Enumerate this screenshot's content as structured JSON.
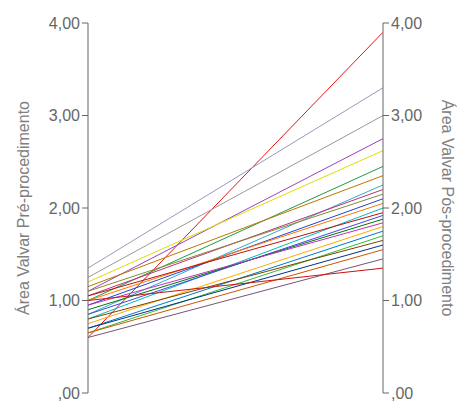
{
  "chart_data": {
    "type": "line",
    "y_label": "Área Valvar Pré-procedimento",
    "y2_label": "Área Valvar Pós-procedimento",
    "x": [
      0,
      1
    ],
    "xlim": [
      0,
      1
    ],
    "ylim": [
      0.0,
      4.0
    ],
    "yticks": [
      {
        "value": 0.0,
        "label": ",00"
      },
      {
        "value": 1.0,
        "label": "1,00"
      },
      {
        "value": 2.0,
        "label": "2,00"
      },
      {
        "value": 3.0,
        "label": "3,00"
      },
      {
        "value": 4.0,
        "label": "4,00"
      }
    ],
    "y2lim": [
      0.0,
      4.0
    ],
    "y2ticks": [
      {
        "value": 0.0,
        "label": ",00"
      },
      {
        "value": 1.0,
        "label": "1,00"
      },
      {
        "value": 2.0,
        "label": "2,00"
      },
      {
        "value": 3.0,
        "label": "3,00"
      },
      {
        "value": 4.0,
        "label": "4,00"
      }
    ],
    "grid": false,
    "tick_labels": "y",
    "series": [
      {
        "color": "#ee1111",
        "values": [
          0.6,
          3.9
        ]
      },
      {
        "color": "#9999bb",
        "values": [
          1.35,
          3.3
        ]
      },
      {
        "color": "#999999",
        "values": [
          1.25,
          3.0
        ]
      },
      {
        "color": "#9944bb",
        "values": [
          1.1,
          2.75
        ]
      },
      {
        "color": "#dddd00",
        "values": [
          1.2,
          2.62
        ]
      },
      {
        "color": "#229944",
        "values": [
          1.0,
          2.45
        ]
      },
      {
        "color": "#bb7700",
        "values": [
          1.15,
          2.35
        ]
      },
      {
        "color": "#33aacc",
        "values": [
          0.85,
          2.25
        ]
      },
      {
        "color": "#bb3377",
        "values": [
          1.05,
          2.2
        ]
      },
      {
        "color": "#888833",
        "values": [
          1.1,
          2.15
        ]
      },
      {
        "color": "#2244cc",
        "values": [
          0.95,
          2.1
        ]
      },
      {
        "color": "#ff7700",
        "values": [
          1.0,
          2.05
        ]
      },
      {
        "color": "#00bbbb",
        "values": [
          0.8,
          2.0
        ]
      },
      {
        "color": "#bb1111",
        "values": [
          1.05,
          1.95
        ]
      },
      {
        "color": "#4444ee",
        "values": [
          0.85,
          1.92
        ]
      },
      {
        "color": "#007700",
        "values": [
          0.9,
          1.88
        ]
      },
      {
        "color": "#bb33bb",
        "values": [
          0.95,
          1.84
        ]
      },
      {
        "color": "#ffaa00",
        "values": [
          0.75,
          1.8
        ]
      },
      {
        "color": "#0077cc",
        "values": [
          0.7,
          1.75
        ]
      },
      {
        "color": "#33bb33",
        "values": [
          0.65,
          1.7
        ]
      },
      {
        "color": "#774400",
        "values": [
          0.8,
          1.65
        ]
      },
      {
        "color": "#003388",
        "values": [
          0.7,
          1.6
        ]
      },
      {
        "color": "#cc5500",
        "values": [
          0.65,
          1.55
        ]
      },
      {
        "color": "#775577",
        "values": [
          0.6,
          1.45
        ]
      },
      {
        "color": "#cc1111",
        "values": [
          1.0,
          1.35
        ]
      }
    ]
  }
}
